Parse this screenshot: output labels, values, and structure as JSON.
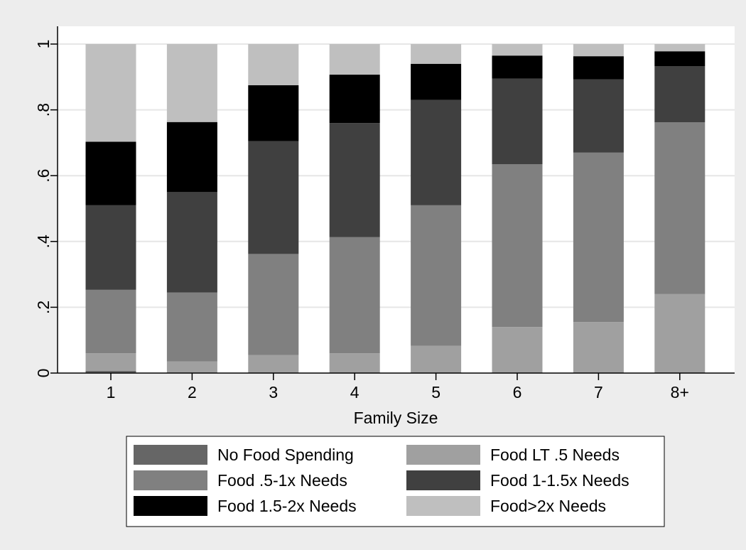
{
  "chart_data": {
    "type": "bar",
    "stacked": true,
    "title": "",
    "xlabel": "Family Size",
    "ylabel": "",
    "ylim": [
      0,
      1
    ],
    "yticks": [
      0,
      0.2,
      0.4,
      0.6,
      0.8,
      1
    ],
    "ytick_labels": [
      "0",
      ".2",
      ".4",
      ".6",
      ".8",
      "1"
    ],
    "grid": true,
    "legend_position": "bottom",
    "categories": [
      "1",
      "2",
      "3",
      "4",
      "5",
      "6",
      "7",
      "8+"
    ],
    "series": [
      {
        "name": "No Food Spending",
        "color": "#666666",
        "values": [
          0.007,
          0.0,
          0.0,
          0.0,
          0.0,
          0.0,
          0.0,
          0.0
        ]
      },
      {
        "name": "Food LT .5 Needs",
        "color": "#a0a0a0",
        "values": [
          0.053,
          0.035,
          0.055,
          0.06,
          0.083,
          0.14,
          0.155,
          0.24
        ]
      },
      {
        "name": "Food .5-1x Needs",
        "color": "#808080",
        "values": [
          0.193,
          0.21,
          0.307,
          0.353,
          0.427,
          0.495,
          0.515,
          0.522
        ]
      },
      {
        "name": "Food 1-1.5x Needs",
        "color": "#404040",
        "values": [
          0.257,
          0.305,
          0.343,
          0.347,
          0.32,
          0.26,
          0.223,
          0.171
        ]
      },
      {
        "name": "Food 1.5-2x Needs",
        "color": "#000000",
        "values": [
          0.193,
          0.213,
          0.17,
          0.147,
          0.11,
          0.07,
          0.07,
          0.045
        ]
      },
      {
        "name": "Food>2x Needs",
        "color": "#bfbfbf",
        "values": [
          0.297,
          0.237,
          0.125,
          0.093,
          0.06,
          0.035,
          0.037,
          0.022
        ]
      }
    ]
  }
}
